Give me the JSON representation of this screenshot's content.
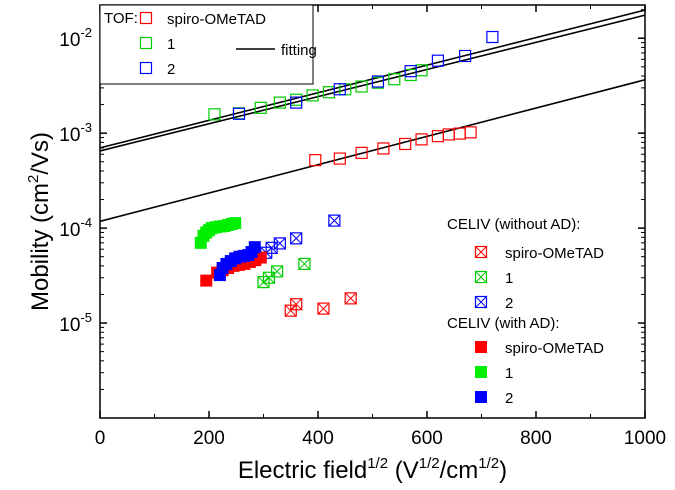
{
  "chart_data": {
    "type": "scatter",
    "xlabel": {
      "main": "Electric field",
      "sup1": "1/2",
      "mid1": " (V",
      "sup2": "1/2",
      "mid2": "/cm",
      "sup3": "1/2",
      "tail": ")"
    },
    "ylabel": {
      "main": "Mobility (cm",
      "sup": "2",
      "tail": "/Vs)"
    },
    "xlim": [
      0,
      1000
    ],
    "ylim_log10": [
      -6,
      -1.65
    ],
    "yscale": "log",
    "grid": false,
    "x_ticks": [
      0,
      200,
      400,
      600,
      800,
      1000
    ],
    "y_ticks": [
      {
        "exp": -2,
        "label_base": "10",
        "label_exp": "-2"
      },
      {
        "exp": -3,
        "label_base": "10",
        "label_exp": "-3"
      },
      {
        "exp": -4,
        "label_base": "10",
        "label_exp": "-4"
      },
      {
        "exp": -5,
        "label_base": "10",
        "label_exp": "-5"
      }
    ],
    "legend_tof": {
      "placement": "top-left",
      "title": "TOF:",
      "fitting_label": "fitting",
      "entries": [
        {
          "series": "tof-spiro",
          "label": "spiro-OMeTAD"
        },
        {
          "series": "tof-1",
          "label": "1"
        },
        {
          "series": "tof-2",
          "label": "2"
        }
      ]
    },
    "legend_celiv": {
      "placement": "right",
      "title_without": "CELIV (without AD):",
      "title_with": "CELIV (with AD):",
      "without_entries": [
        {
          "series": "celiv-noad-spiro",
          "label": "spiro-OMeTAD"
        },
        {
          "series": "celiv-noad-1",
          "label": "1"
        },
        {
          "series": "celiv-noad-2",
          "label": "2"
        }
      ],
      "with_entries": [
        {
          "series": "celiv-ad-spiro",
          "label": "spiro-OMeTAD"
        },
        {
          "series": "celiv-ad-1",
          "label": "1"
        },
        {
          "series": "celiv-ad-2",
          "label": "2"
        }
      ]
    },
    "series": [
      {
        "key": "tof-spiro",
        "marker": "open-square",
        "color": "#ff0000",
        "points": [
          [
            395,
            0.00052
          ],
          [
            440,
            0.00054
          ],
          [
            480,
            0.00062
          ],
          [
            520,
            0.00069
          ],
          [
            560,
            0.00077
          ],
          [
            590,
            0.00086
          ],
          [
            620,
            0.00093
          ],
          [
            640,
            0.00097
          ],
          [
            660,
            0.00099
          ],
          [
            680,
            0.00102
          ]
        ]
      },
      {
        "key": "tof-1",
        "marker": "open-square",
        "color": "#00cc00",
        "points": [
          [
            210,
            0.00158
          ],
          [
            255,
            0.00162
          ],
          [
            295,
            0.00185
          ],
          [
            330,
            0.0021
          ],
          [
            360,
            0.00225
          ],
          [
            390,
            0.0025
          ],
          [
            420,
            0.0027
          ],
          [
            450,
            0.0029
          ],
          [
            480,
            0.0031
          ],
          [
            510,
            0.0034
          ],
          [
            540,
            0.0037
          ],
          [
            570,
            0.0041
          ],
          [
            590,
            0.0046
          ]
        ]
      },
      {
        "key": "tof-2",
        "marker": "open-square",
        "color": "#0000ff",
        "points": [
          [
            255,
            0.0016
          ],
          [
            360,
            0.0021
          ],
          [
            440,
            0.0029
          ],
          [
            510,
            0.0035
          ],
          [
            570,
            0.0045
          ],
          [
            620,
            0.0058
          ],
          [
            670,
            0.0065
          ],
          [
            720,
            0.0103
          ]
        ]
      },
      {
        "key": "fit-spiro",
        "marker": "line",
        "color": "#000000",
        "points": [
          [
            0,
            0.000118
          ],
          [
            1000,
            0.00365
          ]
        ]
      },
      {
        "key": "fit-1",
        "marker": "line",
        "color": "#000000",
        "points": [
          [
            0,
            0.00065
          ],
          [
            1000,
            0.0175
          ]
        ]
      },
      {
        "key": "fit-2",
        "marker": "line",
        "color": "#000000",
        "points": [
          [
            0,
            0.0007
          ],
          [
            1000,
            0.0198
          ]
        ]
      },
      {
        "key": "celiv-noad-spiro",
        "marker": "crossed-square",
        "color": "#ff0000",
        "points": [
          [
            350,
            1.35e-05
          ],
          [
            360,
            1.58e-05
          ],
          [
            410,
            1.42e-05
          ],
          [
            460,
            1.82e-05
          ]
        ]
      },
      {
        "key": "celiv-noad-1",
        "marker": "crossed-square",
        "color": "#00cc00",
        "points": [
          [
            300,
            2.7e-05
          ],
          [
            310,
            3e-05
          ],
          [
            325,
            3.5e-05
          ],
          [
            375,
            4.2e-05
          ]
        ]
      },
      {
        "key": "celiv-noad-2",
        "marker": "crossed-square",
        "color": "#0000ff",
        "points": [
          [
            305,
            5.5e-05
          ],
          [
            315,
            6.2e-05
          ],
          [
            330,
            6.9e-05
          ],
          [
            360,
            7.8e-05
          ],
          [
            430,
            0.00012
          ]
        ]
      },
      {
        "key": "celiv-ad-spiro",
        "marker": "filled-square",
        "color": "#ff0000",
        "points": [
          [
            195,
            2.8e-05
          ],
          [
            215,
            3.4e-05
          ],
          [
            225,
            3.6e-05
          ],
          [
            235,
            3.8e-05
          ],
          [
            245,
            4e-05
          ],
          [
            255,
            4.1e-05
          ],
          [
            265,
            4.2e-05
          ],
          [
            275,
            4.4e-05
          ],
          [
            285,
            4.6e-05
          ],
          [
            295,
            4.9e-05
          ]
        ]
      },
      {
        "key": "celiv-ad-1",
        "marker": "filled-square",
        "color": "#00ee00",
        "points": [
          [
            185,
            7e-05
          ],
          [
            190,
            8.3e-05
          ],
          [
            195,
            9e-05
          ],
          [
            200,
            9.5e-05
          ],
          [
            205,
            0.0001
          ],
          [
            212,
            0.000102
          ],
          [
            220,
            0.000104
          ],
          [
            228,
            0.000105
          ],
          [
            235,
            0.000108
          ],
          [
            242,
            0.000111
          ],
          [
            248,
            0.000113
          ]
        ]
      },
      {
        "key": "celiv-ad-2",
        "marker": "filled-square",
        "color": "#0000ff",
        "points": [
          [
            220,
            3.2e-05
          ],
          [
            225,
            3.8e-05
          ],
          [
            232,
            4.2e-05
          ],
          [
            240,
            4.5e-05
          ],
          [
            248,
            4.8e-05
          ],
          [
            256,
            5e-05
          ],
          [
            264,
            5.1e-05
          ],
          [
            272,
            5.2e-05
          ],
          [
            278,
            5.6e-05
          ],
          [
            284,
            6.3e-05
          ]
        ]
      }
    ]
  }
}
